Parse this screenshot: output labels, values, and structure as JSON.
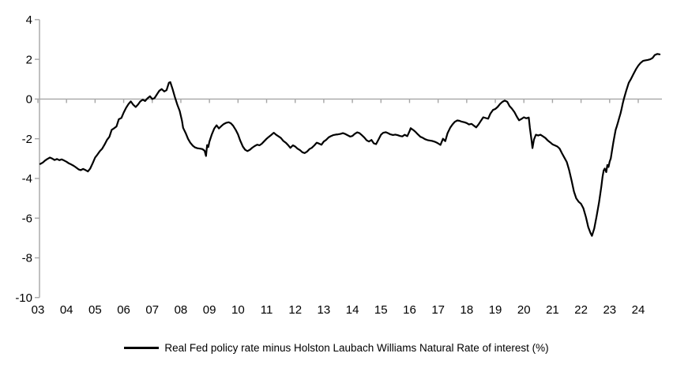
{
  "colors": {
    "background": "#ffffff",
    "axis": "#a6a6a6",
    "series": "#000000",
    "text": "#000000"
  },
  "legend": {
    "label": "Real Fed policy rate minus Holston Laubach Williams Natural Rate of interest (%)"
  },
  "chart_data": {
    "type": "line",
    "title": "",
    "xlabel": "",
    "ylabel": "",
    "grid": "zero-line-only",
    "legend_position": "bottom",
    "y_axis": {
      "ticks": [
        4,
        2,
        0,
        -2,
        -4,
        -6,
        -8,
        -10
      ],
      "range": [
        -10,
        4
      ]
    },
    "x_axis": {
      "tick_labels": [
        "03",
        "04",
        "05",
        "06",
        "07",
        "08",
        "09",
        "10",
        "11",
        "12",
        "13",
        "14",
        "15",
        "16",
        "17",
        "18",
        "19",
        "20",
        "21",
        "22",
        "23",
        "24"
      ],
      "tick_years": [
        2003,
        2004,
        2005,
        2006,
        2007,
        2008,
        2009,
        2010,
        2011,
        2012,
        2013,
        2014,
        2015,
        2016,
        2017,
        2018,
        2019,
        2020,
        2021,
        2022,
        2023,
        2024
      ],
      "range": [
        2003.0,
        2024.85
      ]
    },
    "series": [
      {
        "name": "Real Fed policy rate minus Holston Laubach Williams Natural Rate of interest (%)",
        "color": "#000000",
        "points": [
          [
            2003.08,
            -3.27
          ],
          [
            2003.17,
            -3.2
          ],
          [
            2003.25,
            -3.1
          ],
          [
            2003.33,
            -3.02
          ],
          [
            2003.42,
            -2.95
          ],
          [
            2003.5,
            -3.0
          ],
          [
            2003.58,
            -3.07
          ],
          [
            2003.67,
            -3.02
          ],
          [
            2003.75,
            -3.08
          ],
          [
            2003.83,
            -3.04
          ],
          [
            2003.92,
            -3.1
          ],
          [
            2004.0,
            -3.16
          ],
          [
            2004.08,
            -3.24
          ],
          [
            2004.17,
            -3.3
          ],
          [
            2004.25,
            -3.36
          ],
          [
            2004.33,
            -3.44
          ],
          [
            2004.42,
            -3.54
          ],
          [
            2004.5,
            -3.58
          ],
          [
            2004.58,
            -3.52
          ],
          [
            2004.67,
            -3.58
          ],
          [
            2004.75,
            -3.65
          ],
          [
            2004.83,
            -3.5
          ],
          [
            2004.92,
            -3.22
          ],
          [
            2005.0,
            -2.95
          ],
          [
            2005.08,
            -2.8
          ],
          [
            2005.17,
            -2.62
          ],
          [
            2005.25,
            -2.5
          ],
          [
            2005.33,
            -2.3
          ],
          [
            2005.42,
            -2.05
          ],
          [
            2005.5,
            -1.9
          ],
          [
            2005.58,
            -1.55
          ],
          [
            2005.67,
            -1.47
          ],
          [
            2005.75,
            -1.38
          ],
          [
            2005.83,
            -1.02
          ],
          [
            2005.92,
            -0.95
          ],
          [
            2006.0,
            -0.68
          ],
          [
            2006.08,
            -0.45
          ],
          [
            2006.17,
            -0.25
          ],
          [
            2006.25,
            -0.12
          ],
          [
            2006.33,
            -0.28
          ],
          [
            2006.42,
            -0.4
          ],
          [
            2006.5,
            -0.28
          ],
          [
            2006.58,
            -0.12
          ],
          [
            2006.67,
            -0.03
          ],
          [
            2006.75,
            -0.1
          ],
          [
            2006.83,
            0.03
          ],
          [
            2006.92,
            0.14
          ],
          [
            2007.0,
            0.0
          ],
          [
            2007.08,
            0.05
          ],
          [
            2007.17,
            0.25
          ],
          [
            2007.25,
            0.42
          ],
          [
            2007.33,
            0.5
          ],
          [
            2007.42,
            0.38
          ],
          [
            2007.5,
            0.45
          ],
          [
            2007.58,
            0.82
          ],
          [
            2007.63,
            0.85
          ],
          [
            2007.71,
            0.5
          ],
          [
            2007.79,
            0.1
          ],
          [
            2007.88,
            -0.3
          ],
          [
            2007.96,
            -0.6
          ],
          [
            2008.04,
            -1.1
          ],
          [
            2008.08,
            -1.45
          ],
          [
            2008.17,
            -1.72
          ],
          [
            2008.25,
            -2.0
          ],
          [
            2008.33,
            -2.2
          ],
          [
            2008.42,
            -2.35
          ],
          [
            2008.5,
            -2.44
          ],
          [
            2008.58,
            -2.48
          ],
          [
            2008.67,
            -2.5
          ],
          [
            2008.75,
            -2.52
          ],
          [
            2008.83,
            -2.6
          ],
          [
            2008.88,
            -2.87
          ],
          [
            2008.92,
            -2.32
          ],
          [
            2008.96,
            -2.42
          ],
          [
            2009.0,
            -2.15
          ],
          [
            2009.08,
            -1.8
          ],
          [
            2009.17,
            -1.48
          ],
          [
            2009.25,
            -1.32
          ],
          [
            2009.33,
            -1.48
          ],
          [
            2009.42,
            -1.36
          ],
          [
            2009.5,
            -1.26
          ],
          [
            2009.58,
            -1.2
          ],
          [
            2009.67,
            -1.17
          ],
          [
            2009.75,
            -1.22
          ],
          [
            2009.83,
            -1.35
          ],
          [
            2009.92,
            -1.55
          ],
          [
            2010.0,
            -1.78
          ],
          [
            2010.08,
            -2.1
          ],
          [
            2010.17,
            -2.4
          ],
          [
            2010.25,
            -2.56
          ],
          [
            2010.33,
            -2.62
          ],
          [
            2010.42,
            -2.55
          ],
          [
            2010.5,
            -2.45
          ],
          [
            2010.58,
            -2.37
          ],
          [
            2010.67,
            -2.3
          ],
          [
            2010.75,
            -2.33
          ],
          [
            2010.83,
            -2.25
          ],
          [
            2010.92,
            -2.12
          ],
          [
            2011.0,
            -2.0
          ],
          [
            2011.08,
            -1.9
          ],
          [
            2011.17,
            -1.8
          ],
          [
            2011.25,
            -1.7
          ],
          [
            2011.33,
            -1.8
          ],
          [
            2011.42,
            -1.88
          ],
          [
            2011.5,
            -1.96
          ],
          [
            2011.58,
            -2.1
          ],
          [
            2011.67,
            -2.2
          ],
          [
            2011.75,
            -2.32
          ],
          [
            2011.83,
            -2.46
          ],
          [
            2011.92,
            -2.33
          ],
          [
            2012.0,
            -2.39
          ],
          [
            2012.08,
            -2.5
          ],
          [
            2012.17,
            -2.58
          ],
          [
            2012.25,
            -2.68
          ],
          [
            2012.33,
            -2.72
          ],
          [
            2012.42,
            -2.64
          ],
          [
            2012.5,
            -2.52
          ],
          [
            2012.58,
            -2.46
          ],
          [
            2012.67,
            -2.33
          ],
          [
            2012.75,
            -2.2
          ],
          [
            2012.83,
            -2.24
          ],
          [
            2012.92,
            -2.3
          ],
          [
            2013.0,
            -2.14
          ],
          [
            2013.08,
            -2.06
          ],
          [
            2013.17,
            -1.93
          ],
          [
            2013.25,
            -1.87
          ],
          [
            2013.33,
            -1.82
          ],
          [
            2013.42,
            -1.79
          ],
          [
            2013.5,
            -1.78
          ],
          [
            2013.58,
            -1.76
          ],
          [
            2013.67,
            -1.72
          ],
          [
            2013.75,
            -1.76
          ],
          [
            2013.83,
            -1.82
          ],
          [
            2013.92,
            -1.89
          ],
          [
            2014.0,
            -1.86
          ],
          [
            2014.08,
            -1.76
          ],
          [
            2014.17,
            -1.68
          ],
          [
            2014.25,
            -1.72
          ],
          [
            2014.33,
            -1.82
          ],
          [
            2014.42,
            -1.94
          ],
          [
            2014.5,
            -2.08
          ],
          [
            2014.58,
            -2.14
          ],
          [
            2014.67,
            -2.06
          ],
          [
            2014.75,
            -2.23
          ],
          [
            2014.83,
            -2.27
          ],
          [
            2014.92,
            -2.02
          ],
          [
            2015.0,
            -1.8
          ],
          [
            2015.08,
            -1.7
          ],
          [
            2015.17,
            -1.67
          ],
          [
            2015.25,
            -1.72
          ],
          [
            2015.33,
            -1.78
          ],
          [
            2015.42,
            -1.81
          ],
          [
            2015.5,
            -1.79
          ],
          [
            2015.58,
            -1.82
          ],
          [
            2015.67,
            -1.86
          ],
          [
            2015.75,
            -1.88
          ],
          [
            2015.83,
            -1.8
          ],
          [
            2015.92,
            -1.87
          ],
          [
            2016.0,
            -1.62
          ],
          [
            2016.04,
            -1.47
          ],
          [
            2016.13,
            -1.56
          ],
          [
            2016.21,
            -1.66
          ],
          [
            2016.29,
            -1.78
          ],
          [
            2016.38,
            -1.9
          ],
          [
            2016.46,
            -1.95
          ],
          [
            2016.54,
            -2.02
          ],
          [
            2016.63,
            -2.07
          ],
          [
            2016.71,
            -2.09
          ],
          [
            2016.79,
            -2.11
          ],
          [
            2016.88,
            -2.15
          ],
          [
            2016.96,
            -2.2
          ],
          [
            2017.04,
            -2.27
          ],
          [
            2017.08,
            -2.31
          ],
          [
            2017.17,
            -2.0
          ],
          [
            2017.25,
            -2.12
          ],
          [
            2017.33,
            -1.72
          ],
          [
            2017.42,
            -1.45
          ],
          [
            2017.5,
            -1.28
          ],
          [
            2017.58,
            -1.15
          ],
          [
            2017.67,
            -1.08
          ],
          [
            2017.75,
            -1.1
          ],
          [
            2017.83,
            -1.14
          ],
          [
            2017.92,
            -1.17
          ],
          [
            2018.0,
            -1.21
          ],
          [
            2018.08,
            -1.28
          ],
          [
            2018.17,
            -1.25
          ],
          [
            2018.25,
            -1.34
          ],
          [
            2018.33,
            -1.43
          ],
          [
            2018.42,
            -1.27
          ],
          [
            2018.5,
            -1.09
          ],
          [
            2018.58,
            -0.92
          ],
          [
            2018.67,
            -0.96
          ],
          [
            2018.75,
            -0.99
          ],
          [
            2018.83,
            -0.73
          ],
          [
            2018.92,
            -0.55
          ],
          [
            2019.0,
            -0.5
          ],
          [
            2019.08,
            -0.4
          ],
          [
            2019.17,
            -0.24
          ],
          [
            2019.25,
            -0.14
          ],
          [
            2019.33,
            -0.08
          ],
          [
            2019.42,
            -0.14
          ],
          [
            2019.5,
            -0.36
          ],
          [
            2019.58,
            -0.48
          ],
          [
            2019.67,
            -0.66
          ],
          [
            2019.75,
            -0.88
          ],
          [
            2019.83,
            -1.07
          ],
          [
            2019.92,
            -1.0
          ],
          [
            2020.0,
            -0.92
          ],
          [
            2020.08,
            -0.97
          ],
          [
            2020.17,
            -0.93
          ],
          [
            2020.21,
            -1.45
          ],
          [
            2020.27,
            -2.1
          ],
          [
            2020.3,
            -2.47
          ],
          [
            2020.35,
            -2.05
          ],
          [
            2020.42,
            -1.8
          ],
          [
            2020.5,
            -1.84
          ],
          [
            2020.58,
            -1.8
          ],
          [
            2020.67,
            -1.88
          ],
          [
            2020.75,
            -1.96
          ],
          [
            2020.83,
            -2.08
          ],
          [
            2020.92,
            -2.18
          ],
          [
            2021.0,
            -2.28
          ],
          [
            2021.08,
            -2.33
          ],
          [
            2021.17,
            -2.39
          ],
          [
            2021.25,
            -2.5
          ],
          [
            2021.33,
            -2.73
          ],
          [
            2021.42,
            -2.96
          ],
          [
            2021.5,
            -3.17
          ],
          [
            2021.58,
            -3.56
          ],
          [
            2021.67,
            -4.12
          ],
          [
            2021.75,
            -4.66
          ],
          [
            2021.83,
            -5.0
          ],
          [
            2021.92,
            -5.18
          ],
          [
            2022.0,
            -5.28
          ],
          [
            2022.08,
            -5.5
          ],
          [
            2022.17,
            -5.95
          ],
          [
            2022.25,
            -6.45
          ],
          [
            2022.33,
            -6.75
          ],
          [
            2022.38,
            -6.89
          ],
          [
            2022.46,
            -6.52
          ],
          [
            2022.54,
            -5.92
          ],
          [
            2022.63,
            -5.2
          ],
          [
            2022.71,
            -4.4
          ],
          [
            2022.75,
            -3.92
          ],
          [
            2022.79,
            -3.6
          ],
          [
            2022.83,
            -3.5
          ],
          [
            2022.88,
            -3.68
          ],
          [
            2022.92,
            -3.32
          ],
          [
            2022.96,
            -3.42
          ],
          [
            2023.0,
            -3.15
          ],
          [
            2023.04,
            -3.0
          ],
          [
            2023.08,
            -2.62
          ],
          [
            2023.13,
            -2.18
          ],
          [
            2023.17,
            -1.85
          ],
          [
            2023.21,
            -1.55
          ],
          [
            2023.25,
            -1.38
          ],
          [
            2023.29,
            -1.18
          ],
          [
            2023.33,
            -0.98
          ],
          [
            2023.38,
            -0.72
          ],
          [
            2023.42,
            -0.48
          ],
          [
            2023.46,
            -0.22
          ],
          [
            2023.5,
            0.02
          ],
          [
            2023.58,
            0.42
          ],
          [
            2023.67,
            0.82
          ],
          [
            2023.75,
            1.02
          ],
          [
            2023.83,
            1.25
          ],
          [
            2023.92,
            1.5
          ],
          [
            2024.0,
            1.68
          ],
          [
            2024.08,
            1.82
          ],
          [
            2024.17,
            1.92
          ],
          [
            2024.25,
            1.95
          ],
          [
            2024.33,
            1.97
          ],
          [
            2024.42,
            2.0
          ],
          [
            2024.5,
            2.07
          ],
          [
            2024.58,
            2.22
          ],
          [
            2024.67,
            2.27
          ],
          [
            2024.75,
            2.25
          ]
        ]
      }
    ]
  }
}
